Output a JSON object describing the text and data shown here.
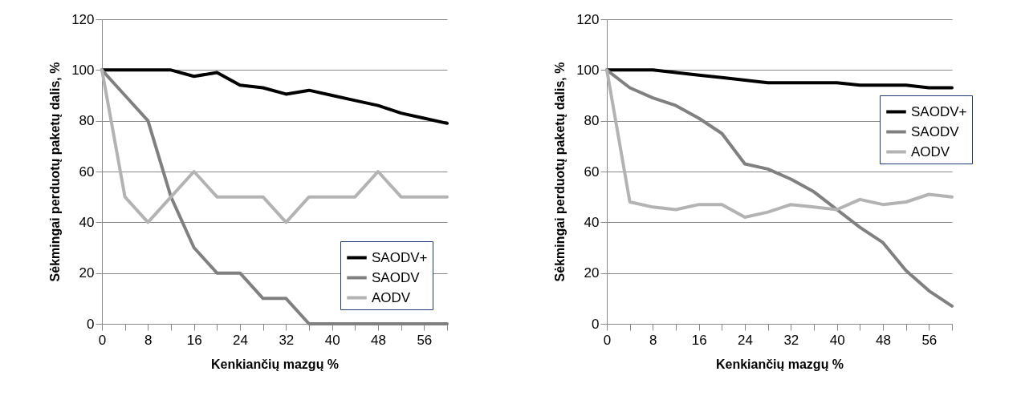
{
  "chart_data": [
    {
      "type": "line",
      "xlabel": "Kenkiančių mazgų %",
      "ylabel": "Sėkmingai perduotų paketų dalis, %",
      "x": [
        0,
        4,
        8,
        12,
        16,
        20,
        24,
        28,
        32,
        36,
        40,
        44,
        48,
        52,
        56,
        60
      ],
      "series": [
        {
          "name": "SAODV+",
          "color": "#000000",
          "values": [
            100,
            100,
            100,
            100,
            97.5,
            99,
            94,
            93,
            90.5,
            92,
            90,
            88,
            86,
            83,
            81,
            79
          ]
        },
        {
          "name": "SAODV",
          "color": "#808080",
          "values": [
            100,
            90,
            80,
            50,
            30,
            20,
            20,
            10,
            10,
            0,
            0,
            0,
            0,
            0,
            0,
            0
          ]
        },
        {
          "name": "AODV",
          "color": "#b3b3b3",
          "values": [
            100,
            50,
            40,
            50,
            60,
            50,
            50,
            50,
            40,
            50,
            50,
            50,
            60,
            50,
            50,
            50
          ]
        }
      ],
      "xlim": [
        0,
        60
      ],
      "xticks": [
        0,
        {
          "value": 4,
          "label": null
        },
        8,
        {
          "value": 12,
          "label": null
        },
        16,
        {
          "value": 20,
          "label": null
        },
        24,
        {
          "value": 28,
          "label": null
        },
        32,
        {
          "value": 36,
          "label": null
        },
        40,
        {
          "value": 44,
          "label": null
        },
        48,
        {
          "value": 52,
          "label": null
        },
        56,
        {
          "value": 60,
          "label": null
        }
      ],
      "ylim": [
        0,
        120
      ],
      "yticks": [
        0,
        20,
        40,
        60,
        80,
        100,
        120
      ],
      "grid": "y",
      "legend": "bottom right",
      "marker": "none",
      "line_style": "solid"
    },
    {
      "type": "line",
      "xlabel": "Kenkiančių mazgų %",
      "ylabel": "Sėkmingai perduotų paketų dalis, %",
      "x": [
        0,
        4,
        8,
        12,
        16,
        20,
        24,
        28,
        32,
        36,
        40,
        44,
        48,
        52,
        56,
        60
      ],
      "series": [
        {
          "name": "SAODV+",
          "color": "#000000",
          "values": [
            100,
            100,
            100,
            99,
            98,
            97,
            96,
            95,
            95,
            95,
            95,
            94,
            94,
            94,
            93,
            93
          ]
        },
        {
          "name": "SAODV",
          "color": "#808080",
          "values": [
            100,
            93,
            89,
            86,
            81,
            75,
            63,
            61,
            57,
            52,
            45,
            38,
            32,
            21,
            13,
            7
          ]
        },
        {
          "name": "AODV",
          "color": "#b3b3b3",
          "values": [
            100,
            48,
            46,
            45,
            47,
            47,
            42,
            44,
            47,
            46,
            45,
            49,
            47,
            48,
            51,
            50
          ]
        }
      ],
      "xlim": [
        0,
        60
      ],
      "xticks": [
        0,
        {
          "value": 4,
          "label": null
        },
        8,
        {
          "value": 12,
          "label": null
        },
        16,
        {
          "value": 20,
          "label": null
        },
        24,
        {
          "value": 28,
          "label": null
        },
        32,
        {
          "value": 36,
          "label": null
        },
        40,
        {
          "value": 44,
          "label": null
        },
        48,
        {
          "value": 52,
          "label": null
        },
        56,
        {
          "value": 60,
          "label": null
        }
      ],
      "ylim": [
        0,
        120
      ],
      "yticks": [
        0,
        20,
        40,
        60,
        80,
        100,
        120
      ],
      "grid": "y",
      "legend": "right",
      "marker": "none",
      "line_style": "solid"
    }
  ]
}
